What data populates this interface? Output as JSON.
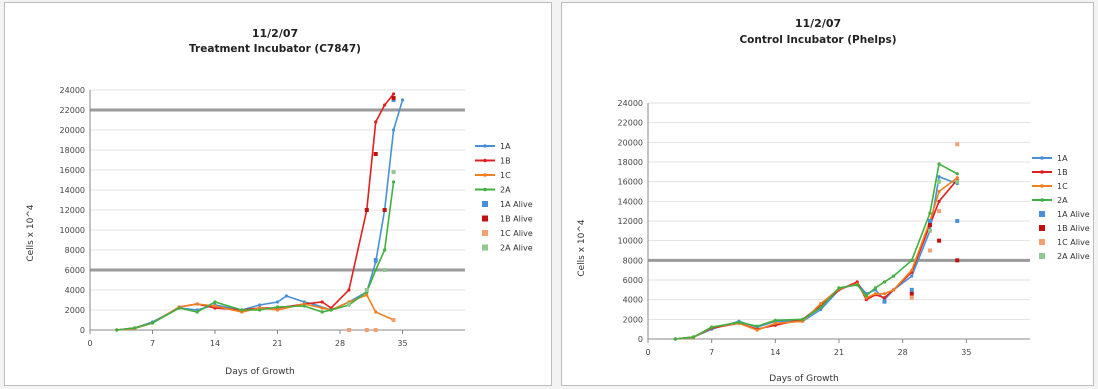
{
  "chart_data": [
    {
      "type": "line",
      "title_date": "11/2/07",
      "title": "Treatment Incubator (C7847)",
      "xlabel": "Days of Growth",
      "ylabel": "Cells x 10^4",
      "xlim": [
        0,
        42
      ],
      "ylim": [
        0,
        24000
      ],
      "xticks": [
        0,
        7,
        14,
        21,
        28,
        35
      ],
      "yticks": [
        0,
        2000,
        4000,
        6000,
        8000,
        10000,
        12000,
        14000,
        16000,
        18000,
        20000,
        22000,
        24000
      ],
      "highlight_gridlines": [
        6000,
        22000
      ],
      "legend_position": "right",
      "series": [
        {
          "name": "1A",
          "color": "#4a90d9",
          "kind": "line",
          "points": [
            [
              3,
              0
            ],
            [
              5,
              200
            ],
            [
              7,
              800
            ],
            [
              10,
              2200
            ],
            [
              12,
              2000
            ],
            [
              14,
              2500
            ],
            [
              17,
              2000
            ],
            [
              19,
              2500
            ],
            [
              21,
              2800
            ],
            [
              22,
              3400
            ],
            [
              24,
              2800
            ],
            [
              25,
              2600
            ],
            [
              27,
              2000
            ],
            [
              29,
              2800
            ],
            [
              31,
              3800
            ],
            [
              32,
              6800
            ],
            [
              33,
              12000
            ],
            [
              34,
              20000
            ],
            [
              35,
              23000
            ]
          ]
        },
        {
          "name": "1B",
          "color": "#e02020",
          "kind": "line",
          "points": [
            [
              3,
              0
            ],
            [
              5,
              200
            ],
            [
              7,
              700
            ],
            [
              10,
              2300
            ],
            [
              12,
              2600
            ],
            [
              14,
              2200
            ],
            [
              17,
              2000
            ],
            [
              19,
              2200
            ],
            [
              21,
              2200
            ],
            [
              24,
              2600
            ],
            [
              26,
              2800
            ],
            [
              27,
              2200
            ],
            [
              29,
              4000
            ],
            [
              31,
              12000
            ],
            [
              32,
              20800
            ],
            [
              33,
              22500
            ],
            [
              34,
              23600
            ]
          ]
        },
        {
          "name": "1C",
          "color": "#f08020",
          "kind": "line",
          "points": [
            [
              3,
              0
            ],
            [
              5,
              150
            ],
            [
              7,
              700
            ],
            [
              10,
              2300
            ],
            [
              12,
              2600
            ],
            [
              14,
              2400
            ],
            [
              17,
              1800
            ],
            [
              19,
              2200
            ],
            [
              21,
              2000
            ],
            [
              24,
              2600
            ],
            [
              26,
              2200
            ],
            [
              27,
              2000
            ],
            [
              29,
              2800
            ],
            [
              31,
              3500
            ],
            [
              32,
              1800
            ],
            [
              34,
              1000
            ]
          ]
        },
        {
          "name": "2A",
          "color": "#40b040",
          "kind": "line",
          "points": [
            [
              3,
              0
            ],
            [
              5,
              200
            ],
            [
              7,
              700
            ],
            [
              10,
              2200
            ],
            [
              12,
              1800
            ],
            [
              14,
              2800
            ],
            [
              17,
              2000
            ],
            [
              19,
              2000
            ],
            [
              21,
              2300
            ],
            [
              24,
              2400
            ],
            [
              26,
              1800
            ],
            [
              27,
              2000
            ],
            [
              29,
              2500
            ],
            [
              31,
              3800
            ],
            [
              32,
              6000
            ],
            [
              33,
              8000
            ],
            [
              34,
              14800
            ]
          ]
        },
        {
          "name": "1A Alive",
          "color": "#4a90d9",
          "kind": "marker",
          "points": [
            [
              32,
              7000
            ],
            [
              34,
              23000
            ]
          ]
        },
        {
          "name": "1B Alive",
          "color": "#c01010",
          "kind": "marker",
          "points": [
            [
              31,
              12000
            ],
            [
              32,
              17600
            ],
            [
              33,
              12000
            ],
            [
              34,
              23200
            ]
          ]
        },
        {
          "name": "1C Alive",
          "color": "#f4a070",
          "kind": "marker",
          "points": [
            [
              29,
              0
            ],
            [
              31,
              0
            ],
            [
              32,
              0
            ],
            [
              34,
              1000
            ]
          ]
        },
        {
          "name": "2A Alive",
          "color": "#90c890",
          "kind": "marker",
          "points": [
            [
              29,
              2600
            ],
            [
              31,
              4000
            ],
            [
              33,
              6000
            ],
            [
              34,
              15800
            ]
          ]
        }
      ]
    },
    {
      "type": "line",
      "title_date": "11/2/07",
      "title": "Control Incubator (Phelps)",
      "xlabel": "Days of Growth",
      "ylabel": "Cells x 10^4",
      "xlim": [
        0,
        42
      ],
      "ylim": [
        0,
        24000
      ],
      "xticks": [
        0,
        7,
        14,
        21,
        28,
        35
      ],
      "yticks": [
        0,
        2000,
        4000,
        6000,
        8000,
        10000,
        12000,
        14000,
        16000,
        18000,
        20000,
        22000,
        24000
      ],
      "highlight_gridlines": [
        8000
      ],
      "legend_position": "right",
      "series": [
        {
          "name": "1A",
          "color": "#4a90d9",
          "kind": "line",
          "points": [
            [
              3,
              0
            ],
            [
              5,
              200
            ],
            [
              7,
              1000
            ],
            [
              10,
              1800
            ],
            [
              12,
              1200
            ],
            [
              14,
              1800
            ],
            [
              17,
              1800
            ],
            [
              19,
              3000
            ],
            [
              21,
              5000
            ],
            [
              23,
              5700
            ],
            [
              24,
              4600
            ],
            [
              25,
              5000
            ],
            [
              26,
              4000
            ],
            [
              27,
              5000
            ],
            [
              29,
              6400
            ],
            [
              31,
              11000
            ],
            [
              32,
              16500
            ],
            [
              34,
              15800
            ]
          ]
        },
        {
          "name": "1B",
          "color": "#e02020",
          "kind": "line",
          "points": [
            [
              3,
              0
            ],
            [
              5,
              200
            ],
            [
              7,
              1100
            ],
            [
              10,
              1600
            ],
            [
              12,
              1000
            ],
            [
              14,
              1400
            ],
            [
              17,
              2000
            ],
            [
              19,
              3400
            ],
            [
              21,
              5000
            ],
            [
              23,
              5800
            ],
            [
              24,
              4000
            ],
            [
              25,
              4500
            ],
            [
              26,
              4200
            ],
            [
              27,
              5000
            ],
            [
              29,
              6800
            ],
            [
              31,
              11600
            ],
            [
              32,
              14000
            ],
            [
              34,
              16200
            ]
          ]
        },
        {
          "name": "1C",
          "color": "#f08020",
          "kind": "line",
          "points": [
            [
              3,
              0
            ],
            [
              5,
              150
            ],
            [
              7,
              1200
            ],
            [
              10,
              1600
            ],
            [
              12,
              900
            ],
            [
              14,
              1600
            ],
            [
              17,
              1800
            ],
            [
              19,
              3600
            ],
            [
              21,
              5100
            ],
            [
              23,
              5600
            ],
            [
              24,
              4200
            ],
            [
              25,
              4600
            ],
            [
              26,
              4600
            ],
            [
              27,
              5000
            ],
            [
              29,
              7000
            ],
            [
              31,
              12000
            ],
            [
              32,
              15000
            ],
            [
              34,
              16400
            ]
          ]
        },
        {
          "name": "2A",
          "color": "#40b040",
          "kind": "line",
          "points": [
            [
              3,
              0
            ],
            [
              5,
              200
            ],
            [
              7,
              1200
            ],
            [
              10,
              1700
            ],
            [
              12,
              1300
            ],
            [
              14,
              1900
            ],
            [
              17,
              2000
            ],
            [
              19,
              3200
            ],
            [
              21,
              5200
            ],
            [
              23,
              5500
            ],
            [
              24,
              4400
            ],
            [
              25,
              5200
            ],
            [
              26,
              5800
            ],
            [
              27,
              6400
            ],
            [
              29,
              8000
            ],
            [
              31,
              12800
            ],
            [
              32,
              17800
            ],
            [
              34,
              16800
            ]
          ]
        },
        {
          "name": "1A Alive",
          "color": "#4a90d9",
          "kind": "marker",
          "points": [
            [
              26,
              3800
            ],
            [
              29,
              5000
            ],
            [
              31,
              12000
            ],
            [
              34,
              12000
            ]
          ]
        },
        {
          "name": "1B Alive",
          "color": "#c01010",
          "kind": "marker",
          "points": [
            [
              29,
              4600
            ],
            [
              31,
              11600
            ],
            [
              32,
              10000
            ],
            [
              34,
              8000
            ]
          ]
        },
        {
          "name": "1C Alive",
          "color": "#f4a070",
          "kind": "marker",
          "points": [
            [
              29,
              4200
            ],
            [
              31,
              9000
            ],
            [
              32,
              13000
            ],
            [
              34,
              19800
            ]
          ]
        },
        {
          "name": "2A Alive",
          "color": "#90c890",
          "kind": "marker",
          "points": [
            [
              31,
              11000
            ],
            [
              32,
              16000
            ],
            [
              34,
              16000
            ]
          ]
        }
      ]
    }
  ]
}
